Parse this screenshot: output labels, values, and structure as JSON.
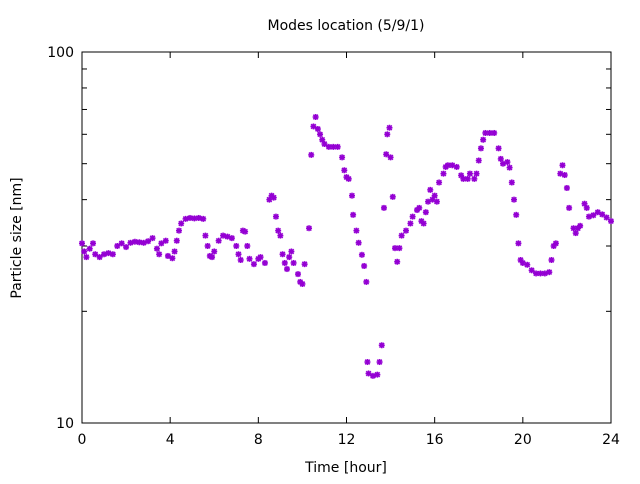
{
  "chart_data": {
    "type": "scatter",
    "title": "Modes location (5/9/1)",
    "xlabel": "Time [hour]",
    "ylabel": "Particle size [nm]",
    "xlim": [
      0,
      24
    ],
    "ylim": [
      10,
      100
    ],
    "yscale": "log",
    "xticks": [
      "0",
      "4",
      "8",
      "12",
      "16",
      "20",
      "24"
    ],
    "yticks": [
      "10",
      "100"
    ],
    "grid": false,
    "color": "#9400d3",
    "points": [
      [
        0.0,
        30.5
      ],
      [
        0.1,
        29
      ],
      [
        0.2,
        28
      ],
      [
        0.35,
        29.5
      ],
      [
        0.5,
        30.5
      ],
      [
        0.6,
        28.5
      ],
      [
        0.8,
        28
      ],
      [
        1.0,
        28.5
      ],
      [
        1.2,
        28.7
      ],
      [
        1.4,
        28.5
      ],
      [
        1.6,
        30
      ],
      [
        1.8,
        30.5
      ],
      [
        2.0,
        29.8
      ],
      [
        2.2,
        30.6
      ],
      [
        2.4,
        30.8
      ],
      [
        2.6,
        30.7
      ],
      [
        2.8,
        30.6
      ],
      [
        3.0,
        30.9
      ],
      [
        3.2,
        31.5
      ],
      [
        3.4,
        29.5
      ],
      [
        3.5,
        28.5
      ],
      [
        3.6,
        30.5
      ],
      [
        3.8,
        31
      ],
      [
        3.9,
        28.2
      ],
      [
        4.1,
        27.8
      ],
      [
        4.2,
        29
      ],
      [
        4.3,
        31
      ],
      [
        4.4,
        33
      ],
      [
        4.5,
        34.5
      ],
      [
        4.7,
        35.5
      ],
      [
        4.9,
        35.7
      ],
      [
        5.1,
        35.6
      ],
      [
        5.3,
        35.7
      ],
      [
        5.5,
        35.5
      ],
      [
        5.6,
        32
      ],
      [
        5.7,
        30
      ],
      [
        5.8,
        28.2
      ],
      [
        5.9,
        28
      ],
      [
        6.0,
        29
      ],
      [
        6.2,
        31
      ],
      [
        6.4,
        32
      ],
      [
        6.6,
        31.8
      ],
      [
        6.8,
        31.5
      ],
      [
        7.0,
        30
      ],
      [
        7.1,
        28.5
      ],
      [
        7.2,
        27.5
      ],
      [
        7.3,
        33
      ],
      [
        7.4,
        32.8
      ],
      [
        7.5,
        30
      ],
      [
        7.6,
        27.7
      ],
      [
        7.8,
        26.8
      ],
      [
        8.0,
        27.7
      ],
      [
        8.1,
        28
      ],
      [
        8.3,
        27
      ],
      [
        8.5,
        40
      ],
      [
        8.6,
        41
      ],
      [
        8.7,
        40.5
      ],
      [
        8.8,
        36
      ],
      [
        8.9,
        33
      ],
      [
        9.0,
        32
      ],
      [
        9.1,
        28.5
      ],
      [
        9.2,
        27
      ],
      [
        9.3,
        26
      ],
      [
        9.4,
        28
      ],
      [
        9.5,
        29
      ],
      [
        9.6,
        27
      ],
      [
        9.8,
        25.2
      ],
      [
        9.9,
        24
      ],
      [
        10.0,
        23.7
      ],
      [
        10.1,
        26.8
      ],
      [
        10.3,
        33.5
      ],
      [
        10.4,
        52.8
      ],
      [
        10.5,
        63
      ],
      [
        10.6,
        66.8
      ],
      [
        10.7,
        62
      ],
      [
        10.8,
        60
      ],
      [
        10.9,
        58
      ],
      [
        11.0,
        56.5
      ],
      [
        11.2,
        55.5
      ],
      [
        11.4,
        55.5
      ],
      [
        11.6,
        55.5
      ],
      [
        11.8,
        52
      ],
      [
        11.9,
        48
      ],
      [
        12.0,
        46
      ],
      [
        12.1,
        45.5
      ],
      [
        12.25,
        41
      ],
      [
        12.3,
        36.4
      ],
      [
        12.45,
        33
      ],
      [
        12.55,
        30.6
      ],
      [
        12.7,
        28.4
      ],
      [
        12.8,
        26.5
      ],
      [
        12.9,
        24
      ],
      [
        12.95,
        14.6
      ],
      [
        13.0,
        13.6
      ],
      [
        13.2,
        13.4
      ],
      [
        13.4,
        13.5
      ],
      [
        13.5,
        14.6
      ],
      [
        13.6,
        16.2
      ],
      [
        13.7,
        38
      ],
      [
        13.8,
        53
      ],
      [
        13.85,
        60
      ],
      [
        13.95,
        62.5
      ],
      [
        14.0,
        52
      ],
      [
        14.1,
        40.7
      ],
      [
        14.2,
        29.6
      ],
      [
        14.3,
        27.2
      ],
      [
        14.4,
        29.6
      ],
      [
        14.5,
        32
      ],
      [
        14.7,
        33
      ],
      [
        14.9,
        34.5
      ],
      [
        15.0,
        36
      ],
      [
        15.2,
        37.5
      ],
      [
        15.3,
        38
      ],
      [
        15.4,
        35
      ],
      [
        15.5,
        34.5
      ],
      [
        15.6,
        37
      ],
      [
        15.7,
        39.5
      ],
      [
        15.8,
        42.5
      ],
      [
        15.9,
        40
      ],
      [
        16.0,
        41
      ],
      [
        16.1,
        39.5
      ],
      [
        16.2,
        44.5
      ],
      [
        16.4,
        47
      ],
      [
        16.5,
        49
      ],
      [
        16.6,
        49.5
      ],
      [
        16.8,
        49.5
      ],
      [
        17.0,
        49
      ],
      [
        17.2,
        46.5
      ],
      [
        17.3,
        45.5
      ],
      [
        17.5,
        45.5
      ],
      [
        17.6,
        47
      ],
      [
        17.8,
        45.5
      ],
      [
        17.9,
        47
      ],
      [
        18.0,
        51
      ],
      [
        18.1,
        55
      ],
      [
        18.2,
        58
      ],
      [
        18.3,
        60.5
      ],
      [
        18.5,
        60.5
      ],
      [
        18.7,
        60.5
      ],
      [
        18.9,
        55
      ],
      [
        19.0,
        51.5
      ],
      [
        19.1,
        50
      ],
      [
        19.3,
        50.5
      ],
      [
        19.4,
        48.8
      ],
      [
        19.5,
        44.5
      ],
      [
        19.6,
        40
      ],
      [
        19.7,
        36.4
      ],
      [
        19.8,
        30.5
      ],
      [
        19.9,
        27.5
      ],
      [
        20.0,
        27
      ],
      [
        20.2,
        26.7
      ],
      [
        20.4,
        25.8
      ],
      [
        20.6,
        25.3
      ],
      [
        20.8,
        25.3
      ],
      [
        21.0,
        25.3
      ],
      [
        21.2,
        25.5
      ],
      [
        21.3,
        27.5
      ],
      [
        21.4,
        30
      ],
      [
        21.5,
        30.5
      ],
      [
        21.7,
        47
      ],
      [
        21.8,
        49.5
      ],
      [
        21.9,
        46.6
      ],
      [
        22.0,
        43
      ],
      [
        22.1,
        38
      ],
      [
        22.3,
        33.5
      ],
      [
        22.4,
        32.5
      ],
      [
        22.5,
        33.5
      ],
      [
        22.6,
        34
      ],
      [
        22.8,
        39
      ],
      [
        22.9,
        38
      ],
      [
        23.0,
        36
      ],
      [
        23.2,
        36.3
      ],
      [
        23.4,
        37
      ],
      [
        23.6,
        36.5
      ],
      [
        23.8,
        35.8
      ],
      [
        24.0,
        35
      ]
    ]
  }
}
